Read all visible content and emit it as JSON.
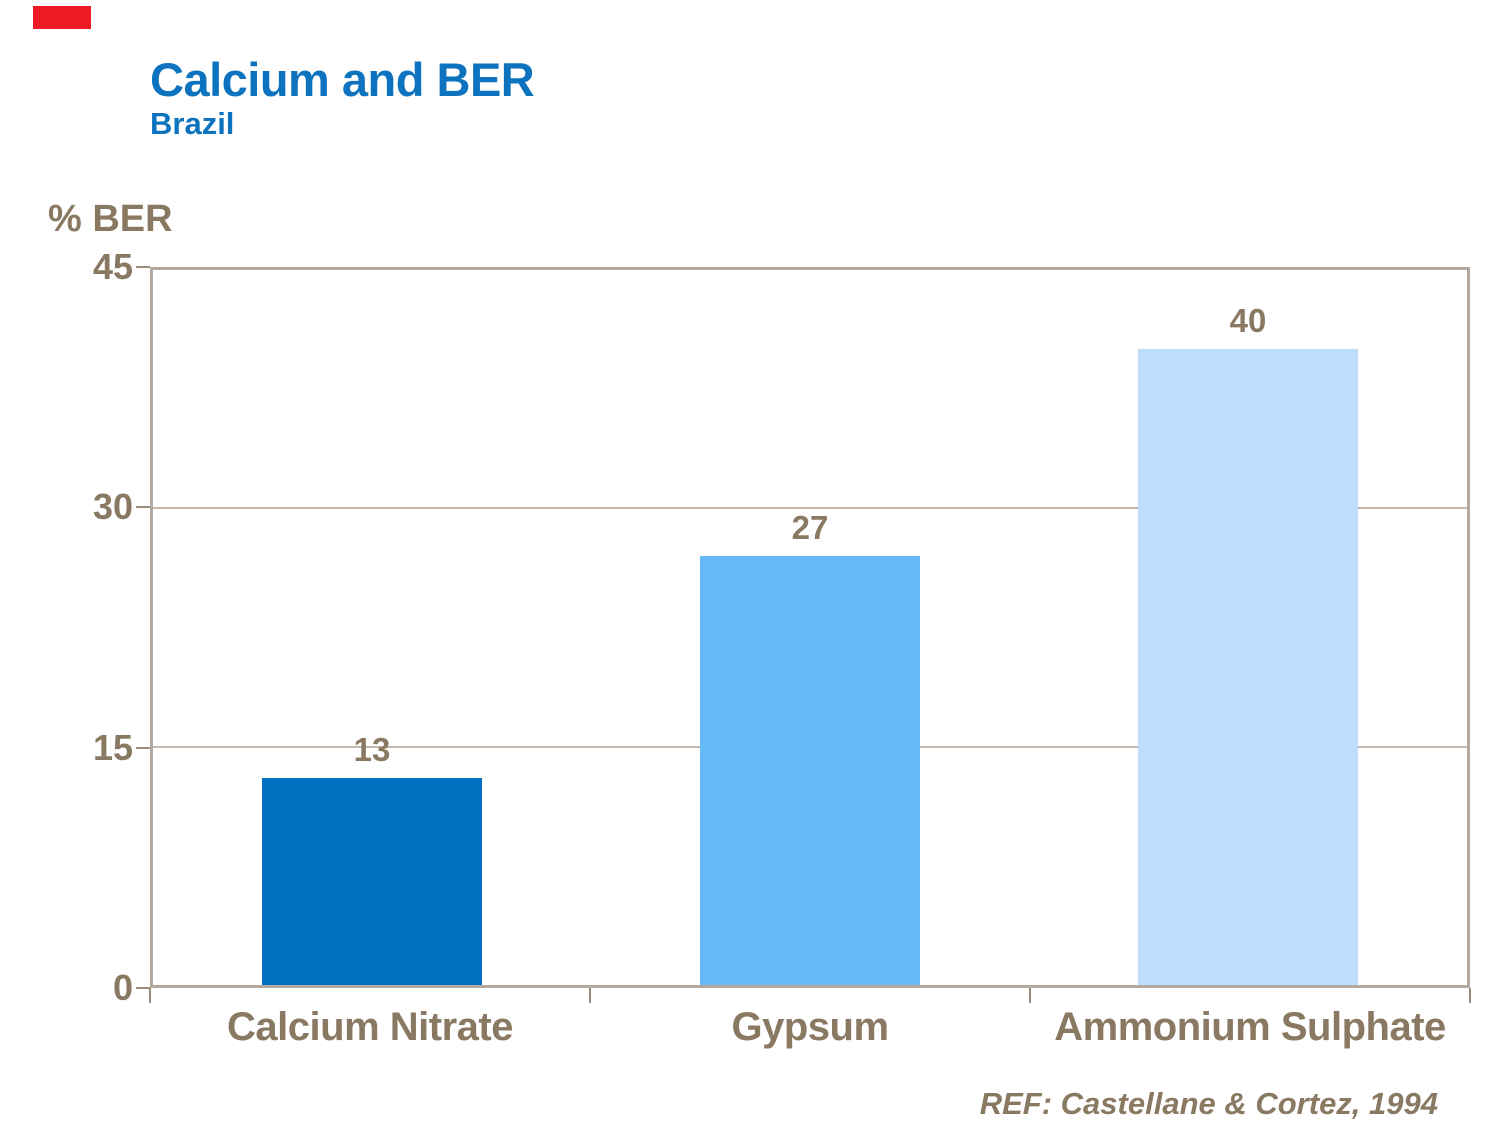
{
  "slide": {
    "title": "Calcium and BER",
    "subtitle": "Brazil",
    "reference": "REF: Castellane & Cortez, 1994",
    "colors": {
      "accent_red": "#ED1C24",
      "title_blue": "#0D73BF",
      "text_taupe": "#8A7962",
      "plot_border": "#B3A99E",
      "gridline": "#C2B7AA",
      "tick": "#9A8B7B"
    }
  },
  "chart_data": {
    "type": "bar",
    "title": "Calcium and BER",
    "subtitle": "Brazil",
    "ylabel": "% BER",
    "xlabel": "",
    "categories": [
      "Calcium Nitrate",
      "Gypsum",
      "Ammonium Sulphate"
    ],
    "values": [
      13,
      27,
      40
    ],
    "bar_colors": [
      "#0071C1",
      "#66B9F7",
      "#BEDFFB"
    ],
    "ylim": [
      0,
      45
    ],
    "yticks": [
      0,
      15,
      30,
      45
    ],
    "grid": true,
    "legend": "none",
    "annotation": "REF: Castellane & Cortez, 1994"
  }
}
